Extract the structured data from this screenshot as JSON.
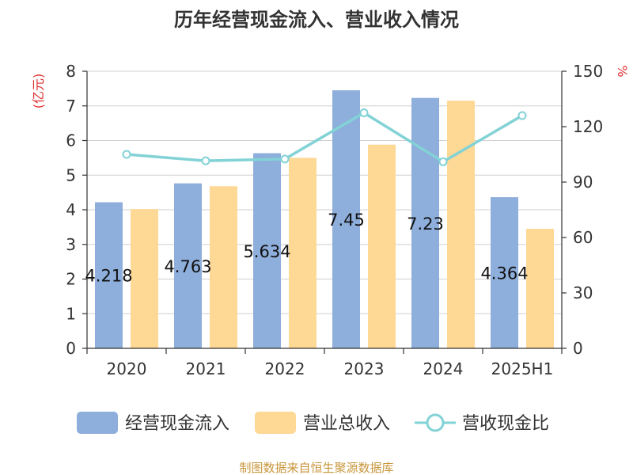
{
  "chart_data": {
    "type": "bar",
    "title": "历年经营现金流入、营业收入情况",
    "categories": [
      "2020",
      "2021",
      "2022",
      "2023",
      "2024",
      "2025H1"
    ],
    "series": [
      {
        "name": "经营现金流入",
        "type": "bar",
        "axis": "left",
        "color": "#8eaedb",
        "values": [
          4.218,
          4.763,
          5.634,
          7.45,
          7.23,
          4.364
        ],
        "labels": [
          "4.218",
          "4.763",
          "5.634",
          "7.45",
          "7.23",
          "4.364"
        ]
      },
      {
        "name": "营业总收入",
        "type": "bar",
        "axis": "left",
        "color": "#fed895",
        "values": [
          4.02,
          4.68,
          5.5,
          5.88,
          7.15,
          3.45
        ]
      },
      {
        "name": "营收现金比",
        "type": "line",
        "axis": "right",
        "color": "#82d2d6",
        "values": [
          105,
          101.5,
          102.5,
          127.5,
          101,
          126
        ]
      }
    ],
    "y_left": {
      "unit": "(亿元)",
      "min": 0,
      "max": 8,
      "ticks": [
        "0",
        "1",
        "2",
        "3",
        "4",
        "5",
        "6",
        "7",
        "8"
      ]
    },
    "y_right": {
      "unit": "%",
      "min": 0,
      "max": 150,
      "ticks": [
        "0",
        "30",
        "60",
        "90",
        "120",
        "150"
      ]
    },
    "grid": true,
    "legend_position": "bottom"
  },
  "footer": {
    "source": "制图数据来自恒生聚源数据库"
  }
}
